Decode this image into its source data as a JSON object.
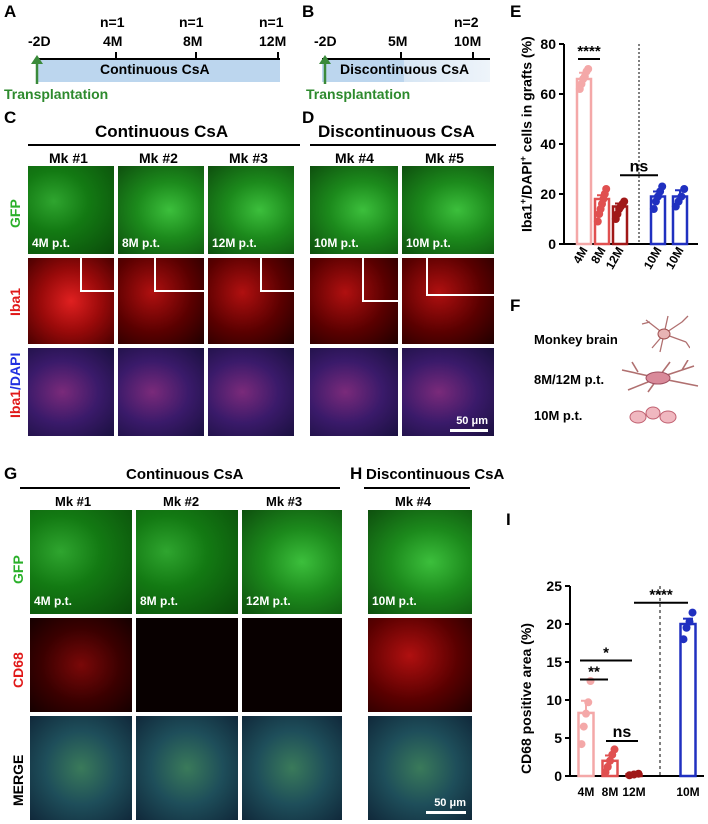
{
  "panels": {
    "A": {
      "letter": "A",
      "ticks": [
        {
          "label": "-2D",
          "n": ""
        },
        {
          "label": "4M",
          "n": "n=1"
        },
        {
          "label": "8M",
          "n": "n=1"
        },
        {
          "label": "12M",
          "n": "n=1"
        }
      ],
      "bar_label": "Continuous CsA",
      "transplant_label": "Transplantation",
      "bar_color": "#bcd6ee",
      "arrow_color": "#3a8a3a"
    },
    "B": {
      "letter": "B",
      "ticks": [
        {
          "label": "-2D",
          "n": ""
        },
        {
          "label": "5M",
          "n": ""
        },
        {
          "label": "10M",
          "n": "n=2"
        }
      ],
      "bar_label": "Discontinuous CsA",
      "transplant_label": "Transplantation"
    },
    "C": {
      "letter": "C",
      "title": "Continuous CsA",
      "columns": [
        "Mk #1",
        "Mk #2",
        "Mk #3"
      ],
      "timepoints": [
        "4M p.t.",
        "8M p.t.",
        "12M p.t."
      ],
      "row_labels": {
        "gfp": "GFP",
        "iba1": "Iba1",
        "merge_a": "Iba1",
        "merge_b": "/DAPI"
      }
    },
    "D": {
      "letter": "D",
      "title": "Discontinuous CsA",
      "columns": [
        "Mk #4",
        "Mk #5"
      ],
      "timepoints": [
        "10M p.t.",
        "10M p.t."
      ],
      "scalebar": "50 μm"
    },
    "E": {
      "letter": "E",
      "ylabel_main": "Iba1",
      "ylabel_sup1": "+",
      "ylabel_mid": "/DAPI",
      "ylabel_sup2": "+",
      "ylabel_end": " cells in grafts (%)",
      "sig_top": "****",
      "sig_ns": "ns"
    },
    "F": {
      "letter": "F",
      "items": [
        "Monkey brain",
        "8M/12M p.t.",
        "10M p.t."
      ]
    },
    "G": {
      "letter": "G",
      "title": "Continuous CsA",
      "columns": [
        "Mk #1",
        "Mk #2",
        "Mk #3"
      ],
      "timepoints": [
        "4M p.t.",
        "8M p.t.",
        "12M p.t."
      ],
      "row_labels": {
        "gfp": "GFP",
        "cd68": "CD68",
        "merge": "MERGE"
      }
    },
    "H": {
      "letter": "H",
      "title": "Discontinuous CsA",
      "columns": [
        "Mk #4"
      ],
      "timepoints": [
        "10M p.t."
      ],
      "scalebar": "50 μm"
    },
    "I": {
      "letter": "I",
      "sig": [
        "**",
        "*",
        "ns",
        "****"
      ]
    }
  },
  "chart_data": [
    {
      "type": "bar",
      "panel": "E",
      "categories": [
        "4M",
        "8M",
        "12M",
        "10M",
        "10M"
      ],
      "values": [
        66,
        18,
        15,
        19,
        19
      ],
      "errors": [
        2.5,
        1.5,
        1.2,
        2.0,
        2.5
      ],
      "points": [
        [
          62,
          64,
          66,
          67,
          69,
          70
        ],
        [
          9,
          12,
          14,
          16,
          18,
          20,
          22
        ],
        [
          10,
          12,
          14,
          15,
          16,
          17
        ],
        [
          14,
          17,
          19,
          21,
          23
        ],
        [
          15,
          17,
          19,
          22
        ]
      ],
      "colors": [
        "#f4a8a8",
        "#e05050",
        "#a01818",
        "#2030c0",
        "#2030c0"
      ],
      "ylabel": "Iba1+/DAPI+ cells in grafts (%)",
      "ylim": [
        0,
        80
      ],
      "yticks": [
        0,
        20,
        40,
        60,
        80
      ],
      "grid": false
    },
    {
      "type": "bar",
      "panel": "I",
      "categories": [
        "4M",
        "8M",
        "12M",
        "10M"
      ],
      "values": [
        8.3,
        2.0,
        0.2,
        20.0
      ],
      "errors": [
        1.6,
        0.7,
        0.1,
        0.7
      ],
      "points": [
        [
          4.2,
          6.5,
          8.2,
          9.7,
          12.5
        ],
        [
          0.5,
          1.2,
          2.0,
          2.8,
          3.5
        ],
        [
          0.1,
          0.2,
          0.3
        ],
        [
          18,
          19.5,
          20.3,
          21.5
        ]
      ],
      "colors": [
        "#f4a8a8",
        "#e05050",
        "#a01818",
        "#2030c0"
      ],
      "ylabel": "CD68 positive area (%)",
      "ylim": [
        0,
        25
      ],
      "yticks": [
        0,
        5,
        10,
        15,
        20,
        25
      ],
      "grid": false
    }
  ]
}
